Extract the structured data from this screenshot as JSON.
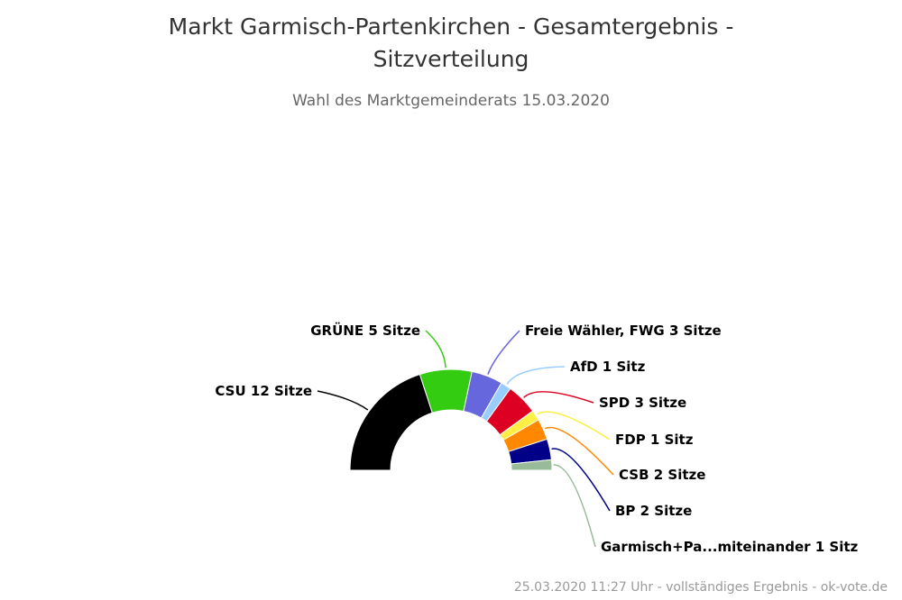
{
  "title": "Markt Garmisch-Partenkirchen - Gesamtergebnis - Sitzverteilung",
  "subtitle": "Wahl des Marktgemeinderats 15.03.2020",
  "footer": "25.03.2020 11:27 Uhr - vollständiges Ergebnis - ok-vote.de",
  "chart_data": {
    "type": "pie",
    "variant": "semicircle-donut",
    "title": "Markt Garmisch-Partenkirchen - Gesamtergebnis - Sitzverteilung",
    "subtitle": "Wahl des Marktgemeinderats 15.03.2020",
    "unit": "Sitze",
    "categories": [
      "CSU",
      "GRÜNE",
      "Freie Wähler, FWG",
      "AfD",
      "SPD",
      "FDP",
      "CSB",
      "BP",
      "Garmisch+Pa...miteinander"
    ],
    "values": [
      12,
      5,
      3,
      1,
      3,
      1,
      2,
      2,
      1
    ],
    "labels": [
      "CSU 12 Sitze",
      "GRÜNE 5 Sitze",
      "Freie Wähler, FWG 3 Sitze",
      "AfD 1 Sitz",
      "SPD 3 Sitze",
      "FDP 1 Sitz",
      "CSB 2 Sitze",
      "BP 2 Sitze",
      "Garmisch+Pa...miteinander 1 Sitz"
    ],
    "colors": [
      "#000000",
      "#33cc11",
      "#6666dd",
      "#99ccff",
      "#dd0022",
      "#ffee44",
      "#ff8800",
      "#000088",
      "#99bb99"
    ]
  }
}
